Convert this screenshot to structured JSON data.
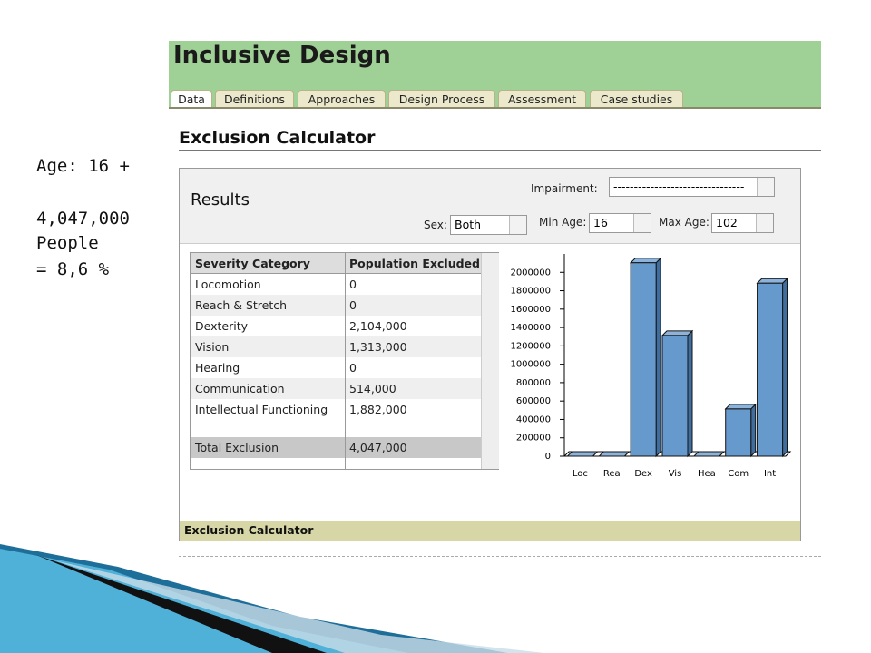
{
  "side_note": [
    "Age: 16 +",
    "4,047,000",
    "People",
    "= 8,6 %"
  ],
  "header": {
    "title": "Inclusive Design"
  },
  "tabs": [
    "Data",
    "Definitions",
    "Approaches",
    "Design Process",
    "Assessment",
    "Case studies"
  ],
  "section_title": "Exclusion Calculator",
  "results": {
    "title": "Results",
    "impairment_label": "Impairment:",
    "impairment_value": "--------------------------------",
    "sex_label": "Sex:",
    "sex_value": "Both",
    "min_age_label": "Min Age:",
    "min_age_value": "16",
    "max_age_label": "Max Age:",
    "max_age_value": "102"
  },
  "table": {
    "columns": [
      "Severity Category",
      "Population Excluded"
    ],
    "rows": [
      [
        "Locomotion",
        "0"
      ],
      [
        "Reach & Stretch",
        "0"
      ],
      [
        "Dexterity",
        "2,104,000"
      ],
      [
        "Vision",
        "1,313,000"
      ],
      [
        "Hearing",
        "0"
      ],
      [
        "Communication",
        "514,000"
      ],
      [
        "Intellectual Functioning",
        "1,882,000"
      ]
    ],
    "total": [
      "Total Exclusion",
      "4,047,000"
    ]
  },
  "chart_data": {
    "type": "bar3d",
    "categories": [
      "Loc",
      "Rea",
      "Dex",
      "Vis",
      "Hea",
      "Com",
      "Int"
    ],
    "values": [
      0,
      0,
      2104000,
      1313000,
      0,
      514000,
      1882000
    ],
    "color": "#6699cc",
    "ylim": [
      0,
      2200000
    ],
    "yticks": [
      0,
      200000,
      400000,
      600000,
      800000,
      1000000,
      1200000,
      1400000,
      1600000,
      1800000,
      2000000
    ]
  },
  "footer": {
    "title": "Exclusion Calculator"
  }
}
